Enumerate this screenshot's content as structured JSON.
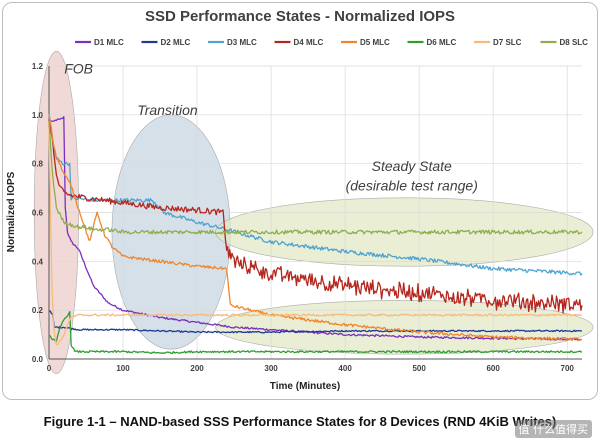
{
  "page": {
    "caption": "Figure 1-1 – NAND-based SSS Performance States for 8 Devices (RND 4KiB Writes)",
    "watermark": "值 什么值得买"
  },
  "chart_data": {
    "type": "line",
    "title": "SSD Performance States - Normalized IOPS",
    "xlabel": "Time (Minutes)",
    "ylabel": "Normalized IOPS",
    "xlim": [
      0,
      720
    ],
    "ylim": [
      0,
      1.2
    ],
    "xticks": [
      0,
      100,
      200,
      300,
      400,
      500,
      600,
      700
    ],
    "yticks": [
      0,
      0.2,
      0.4,
      0.6,
      0.8,
      1,
      1.2
    ],
    "ytick_labels": [
      "0.0",
      "0.2",
      "0.4",
      "0.6",
      "0.8",
      "1.0",
      "1.2"
    ],
    "grid": true,
    "legend_position": "top",
    "annotations": [
      {
        "text": "FOB",
        "x": 40,
        "y": 1.17
      },
      {
        "text": "Transition",
        "x": 160,
        "y": 1.0
      },
      {
        "text": "Steady State",
        "x": 490,
        "y": 0.77
      },
      {
        "text": "(desirable test range)",
        "x": 490,
        "y": 0.69
      }
    ],
    "regions": [
      {
        "name": "FOB",
        "cx": 10,
        "cy": 0.6,
        "rx": 30,
        "ry": 0.66,
        "color": "#e9c9c6"
      },
      {
        "name": "Transition",
        "cx": 165,
        "cy": 0.52,
        "rx": 80,
        "ry": 0.48,
        "color": "#c5d3df"
      },
      {
        "name": "Steady State upper",
        "cx": 480,
        "cy": 0.52,
        "rx": 255,
        "ry": 0.14,
        "color": "#dfe7c3"
      },
      {
        "name": "Steady State lower",
        "cx": 480,
        "cy": 0.13,
        "rx": 255,
        "ry": 0.11,
        "color": "#dfe7c3"
      }
    ],
    "series": [
      {
        "name": "D1 MLC",
        "color": "#7b2fbe",
        "noise": 0.004,
        "x": [
          0,
          5,
          10,
          15,
          20,
          22,
          25,
          30,
          40,
          60,
          80,
          100,
          150,
          200,
          250,
          300,
          400,
          500,
          600,
          720
        ],
        "y": [
          0.98,
          0.97,
          0.98,
          0.98,
          0.99,
          0.62,
          0.52,
          0.48,
          0.45,
          0.3,
          0.23,
          0.2,
          0.17,
          0.15,
          0.13,
          0.12,
          0.1,
          0.09,
          0.085,
          0.08
        ]
      },
      {
        "name": "D2 MLC",
        "color": "#1f3a93",
        "noise": 0.003,
        "x": [
          0,
          5,
          7,
          10,
          20,
          40,
          60,
          100,
          200,
          300,
          400,
          500,
          600,
          720
        ],
        "y": [
          0.2,
          0.18,
          0.13,
          0.13,
          0.13,
          0.12,
          0.12,
          0.12,
          0.11,
          0.11,
          0.115,
          0.115,
          0.115,
          0.115
        ]
      },
      {
        "name": "D3 MLC",
        "color": "#4fa3d1",
        "noise": 0.008,
        "x": [
          0,
          3,
          5,
          10,
          15,
          20,
          28,
          30,
          60,
          65,
          100,
          140,
          150,
          155,
          200,
          240,
          300,
          400,
          500,
          600,
          720
        ],
        "y": [
          1.0,
          0.95,
          0.88,
          0.82,
          0.81,
          0.8,
          0.8,
          0.66,
          0.65,
          0.65,
          0.65,
          0.65,
          0.62,
          0.6,
          0.56,
          0.53,
          0.48,
          0.44,
          0.41,
          0.37,
          0.35
        ]
      },
      {
        "name": "D4 MLC",
        "color": "#b5261e",
        "noise": 0.012,
        "x": [
          0,
          3,
          5,
          8,
          10,
          15,
          20,
          30,
          50,
          100,
          150,
          200,
          235,
          240,
          250,
          300,
          400,
          500,
          600,
          720
        ],
        "y": [
          0.98,
          0.93,
          0.9,
          0.8,
          0.75,
          0.7,
          0.68,
          0.67,
          0.66,
          0.64,
          0.62,
          0.61,
          0.6,
          0.45,
          0.4,
          0.35,
          0.3,
          0.27,
          0.24,
          0.22
        ]
      },
      {
        "name": "D5 MLC",
        "color": "#f0862b",
        "noise": 0.006,
        "x": [
          0,
          3,
          5,
          10,
          20,
          30,
          35,
          45,
          55,
          65,
          75,
          85,
          100,
          150,
          200,
          240,
          245,
          300,
          400,
          500,
          600,
          720
        ],
        "y": [
          1.0,
          0.95,
          0.9,
          0.83,
          0.76,
          0.71,
          0.66,
          0.57,
          0.48,
          0.6,
          0.51,
          0.46,
          0.42,
          0.4,
          0.38,
          0.37,
          0.22,
          0.18,
          0.14,
          0.11,
          0.09,
          0.08
        ]
      },
      {
        "name": "D6 MLC",
        "color": "#2f9e2f",
        "noise": 0.004,
        "x": [
          0,
          5,
          10,
          15,
          20,
          25,
          28,
          30,
          35,
          40,
          60,
          100,
          150,
          200,
          300,
          400,
          500,
          600,
          720
        ],
        "y": [
          0.1,
          0.08,
          0.07,
          0.13,
          0.16,
          0.18,
          0.19,
          0.06,
          0.03,
          0.03,
          0.03,
          0.03,
          0.025,
          0.03,
          0.03,
          0.03,
          0.03,
          0.03,
          0.03
        ]
      },
      {
        "name": "D7 SLC",
        "color": "#f7bb7b",
        "noise": 0.004,
        "x": [
          0,
          2,
          4,
          6,
          8,
          10,
          15,
          20,
          25,
          30,
          40,
          60,
          100,
          200,
          300,
          400,
          500,
          600,
          720
        ],
        "y": [
          0.95,
          0.6,
          0.3,
          0.15,
          0.09,
          0.06,
          0.07,
          0.1,
          0.14,
          0.17,
          0.18,
          0.18,
          0.18,
          0.18,
          0.18,
          0.18,
          0.18,
          0.18,
          0.18
        ]
      },
      {
        "name": "D8 SLC",
        "color": "#90ad4e",
        "noise": 0.008,
        "x": [
          0,
          5,
          10,
          20,
          30,
          40,
          50,
          60,
          80,
          100,
          150,
          200,
          300,
          400,
          500,
          600,
          720
        ],
        "y": [
          0.97,
          0.75,
          0.62,
          0.56,
          0.55,
          0.54,
          0.54,
          0.53,
          0.53,
          0.52,
          0.52,
          0.52,
          0.52,
          0.52,
          0.52,
          0.52,
          0.52
        ]
      }
    ]
  }
}
